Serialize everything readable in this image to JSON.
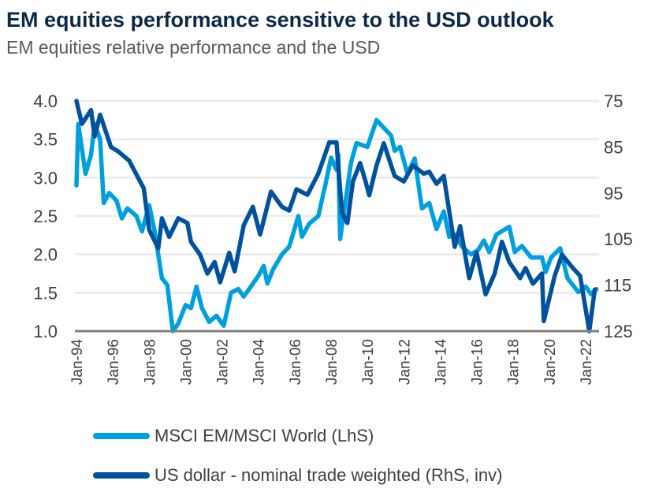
{
  "chart_data": {
    "type": "line",
    "title": "EM equities performance sensitive to the USD outlook",
    "subtitle": "EM equities relative performance and the USD",
    "x_ticks": [
      "Jan-94",
      "Jan-96",
      "Jan-98",
      "Jan-00",
      "Jan-02",
      "Jan-04",
      "Jan-06",
      "Jan-08",
      "Jan-10",
      "Jan-12",
      "Jan-14",
      "Jan-16",
      "Jan-18",
      "Jan-20",
      "Jan-22"
    ],
    "y_left": {
      "ticks": [
        "1.0",
        "1.5",
        "2.0",
        "2.5",
        "3.0",
        "3.5",
        "4.0"
      ],
      "range": [
        1.0,
        4.0
      ]
    },
    "y_right": {
      "ticks": [
        "75",
        "85",
        "95",
        "105",
        "115",
        "125"
      ],
      "range": [
        75,
        125
      ],
      "inverted": true
    },
    "x_range": [
      1994.0,
      2022.7
    ],
    "grid": true,
    "legend_placement": "bottom",
    "series": [
      {
        "name": "MSCI EM/MSCI World (LhS)",
        "axis": "left",
        "color": "#00A0E0",
        "points": [
          [
            1994.0,
            2.9
          ],
          [
            1994.1,
            3.7
          ],
          [
            1994.5,
            3.05
          ],
          [
            1994.8,
            3.3
          ],
          [
            1995.0,
            3.7
          ],
          [
            1995.3,
            3.5
          ],
          [
            1995.5,
            2.67
          ],
          [
            1995.8,
            2.8
          ],
          [
            1996.2,
            2.7
          ],
          [
            1996.5,
            2.47
          ],
          [
            1996.8,
            2.6
          ],
          [
            1997.3,
            2.5
          ],
          [
            1997.6,
            2.3
          ],
          [
            1998.0,
            2.64
          ],
          [
            1998.3,
            2.3
          ],
          [
            1998.7,
            1.69
          ],
          [
            1999.0,
            1.6
          ],
          [
            1999.3,
            1.0
          ],
          [
            1999.6,
            1.1
          ],
          [
            2000.0,
            1.34
          ],
          [
            2000.3,
            1.3
          ],
          [
            2000.6,
            1.58
          ],
          [
            2000.9,
            1.3
          ],
          [
            2001.3,
            1.12
          ],
          [
            2001.7,
            1.2
          ],
          [
            2002.1,
            1.07
          ],
          [
            2002.5,
            1.5
          ],
          [
            2002.9,
            1.55
          ],
          [
            2003.2,
            1.45
          ],
          [
            2003.5,
            1.55
          ],
          [
            2004.0,
            1.72
          ],
          [
            2004.3,
            1.85
          ],
          [
            2004.5,
            1.62
          ],
          [
            2004.8,
            1.8
          ],
          [
            2005.3,
            2.0
          ],
          [
            2005.7,
            2.1
          ],
          [
            2006.2,
            2.5
          ],
          [
            2006.4,
            2.23
          ],
          [
            2006.8,
            2.4
          ],
          [
            2007.3,
            2.5
          ],
          [
            2007.7,
            2.92
          ],
          [
            2008.0,
            3.26
          ],
          [
            2008.3,
            3.1
          ],
          [
            2008.4,
            3.3
          ],
          [
            2008.5,
            2.2
          ],
          [
            2009.1,
            3.2
          ],
          [
            2009.4,
            3.45
          ],
          [
            2010.0,
            3.4
          ],
          [
            2010.5,
            3.75
          ],
          [
            2010.9,
            3.65
          ],
          [
            2011.3,
            3.55
          ],
          [
            2011.5,
            3.35
          ],
          [
            2011.8,
            3.4
          ],
          [
            2012.2,
            3.05
          ],
          [
            2012.6,
            3.25
          ],
          [
            2013.0,
            2.6
          ],
          [
            2013.4,
            2.67
          ],
          [
            2013.8,
            2.33
          ],
          [
            2014.2,
            2.56
          ],
          [
            2014.5,
            2.23
          ],
          [
            2014.8,
            2.26
          ],
          [
            2015.2,
            2.1
          ],
          [
            2015.7,
            2.0
          ],
          [
            2016.1,
            2.06
          ],
          [
            2016.4,
            2.18
          ],
          [
            2016.7,
            2.03
          ],
          [
            2017.1,
            2.26
          ],
          [
            2017.8,
            2.36
          ],
          [
            2018.1,
            2.03
          ],
          [
            2018.5,
            2.11
          ],
          [
            2019.0,
            1.96
          ],
          [
            2019.6,
            1.96
          ],
          [
            2019.8,
            1.77
          ],
          [
            2020.1,
            1.96
          ],
          [
            2020.6,
            2.08
          ],
          [
            2021.0,
            1.69
          ],
          [
            2021.6,
            1.51
          ],
          [
            2022.0,
            1.58
          ],
          [
            2022.3,
            1.48
          ],
          [
            2022.6,
            1.55
          ]
        ]
      },
      {
        "name": "US dollar - nominal trade weighted (RhS, inv)",
        "axis": "right",
        "color": "#00519E",
        "points": [
          [
            1994.0,
            75
          ],
          [
            1994.3,
            80
          ],
          [
            1994.8,
            77
          ],
          [
            1995.0,
            82.7
          ],
          [
            1995.3,
            78
          ],
          [
            1995.9,
            85
          ],
          [
            1996.3,
            86
          ],
          [
            1996.9,
            88
          ],
          [
            1997.3,
            91
          ],
          [
            1997.7,
            94
          ],
          [
            1998.0,
            103
          ],
          [
            1998.5,
            107
          ],
          [
            1998.7,
            100.5
          ],
          [
            1999.1,
            104.5
          ],
          [
            1999.6,
            100.5
          ],
          [
            2000.1,
            101.5
          ],
          [
            2000.3,
            105.6
          ],
          [
            2000.8,
            108.4
          ],
          [
            2001.2,
            112.5
          ],
          [
            2001.6,
            110
          ],
          [
            2001.9,
            114.4
          ],
          [
            2002.4,
            108
          ],
          [
            2002.7,
            112
          ],
          [
            2003.2,
            102
          ],
          [
            2003.7,
            98
          ],
          [
            2004.1,
            104
          ],
          [
            2004.7,
            94.7
          ],
          [
            2005.3,
            98
          ],
          [
            2005.7,
            98.8
          ],
          [
            2006.1,
            94.2
          ],
          [
            2006.7,
            95.4
          ],
          [
            2007.3,
            90.8
          ],
          [
            2007.9,
            84
          ],
          [
            2008.3,
            84
          ],
          [
            2008.6,
            99.3
          ],
          [
            2008.9,
            101.5
          ],
          [
            2009.2,
            92.5
          ],
          [
            2009.6,
            88.5
          ],
          [
            2009.9,
            92.5
          ],
          [
            2010.1,
            95.5
          ],
          [
            2010.5,
            89
          ],
          [
            2010.9,
            84.2
          ],
          [
            2011.5,
            91.3
          ],
          [
            2012.0,
            92.5
          ],
          [
            2012.5,
            89
          ],
          [
            2013.1,
            90.8
          ],
          [
            2013.4,
            90.4
          ],
          [
            2013.8,
            93
          ],
          [
            2014.2,
            91.3
          ],
          [
            2014.4,
            96.4
          ],
          [
            2014.8,
            106.7
          ],
          [
            2015.1,
            102.2
          ],
          [
            2015.6,
            113.5
          ],
          [
            2016.0,
            107.9
          ],
          [
            2016.5,
            117
          ],
          [
            2017.0,
            112.5
          ],
          [
            2017.4,
            105.6
          ],
          [
            2017.8,
            110
          ],
          [
            2018.4,
            113.5
          ],
          [
            2018.7,
            111.3
          ],
          [
            2019.1,
            114.7
          ],
          [
            2019.6,
            112.5
          ],
          [
            2019.7,
            122.8
          ],
          [
            2020.3,
            113
          ],
          [
            2020.7,
            108.4
          ],
          [
            2021.3,
            111.3
          ],
          [
            2021.7,
            113
          ],
          [
            2022.2,
            125
          ],
          [
            2022.5,
            116
          ]
        ]
      }
    ]
  }
}
